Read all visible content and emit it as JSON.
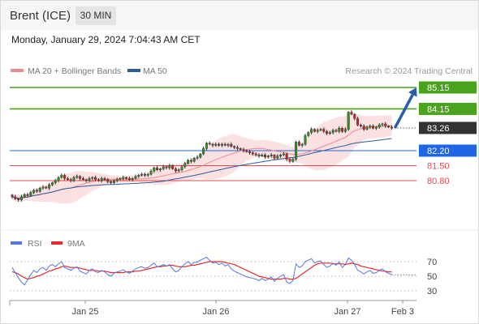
{
  "header": {
    "instrument": "Brent (ICE)",
    "timeframe": "30 MIN",
    "timestamp": "Monday, January 29, 2024 7:04:43 AM CET"
  },
  "legend": {
    "items": [
      {
        "label": "MA 20 + Bollinger Bands",
        "color": "#f08a8a"
      },
      {
        "label": "MA 50",
        "color": "#2d5aa0"
      }
    ],
    "credit": "Research © 2024 Trading Central"
  },
  "chart_data": [
    {
      "type": "candlestick",
      "x_axis": {
        "labels": [
          "Jan 25",
          "Jan 26",
          "Jan 27",
          "Feb 3"
        ]
      },
      "y_range": [
        79.5,
        85.6
      ],
      "grid": false,
      "levels": [
        {
          "value": 85.15,
          "label": "85.15",
          "kind": "resistance",
          "color": "#4aa31c"
        },
        {
          "value": 84.15,
          "label": "84.15",
          "kind": "resistance",
          "color": "#4aa31c"
        },
        {
          "value": 83.26,
          "label": "83.26",
          "kind": "last_price",
          "color": "#333333"
        },
        {
          "value": 82.2,
          "label": "82.20",
          "kind": "pivot",
          "color": "#1f66e5"
        },
        {
          "value": 81.5,
          "label": "81.50",
          "kind": "support",
          "color": "#e8484b"
        },
        {
          "value": 80.8,
          "label": "80.80",
          "kind": "support",
          "color": "#e8484b"
        }
      ],
      "target_arrow": {
        "from": 83.26,
        "to": 85.15
      },
      "closes": [
        80.05,
        79.95,
        79.9,
        80.05,
        80.15,
        80.1,
        80.25,
        80.35,
        80.3,
        80.45,
        80.5,
        80.45,
        80.6,
        80.7,
        80.8,
        80.95,
        81.05,
        80.9,
        80.85,
        80.8,
        80.95,
        81.0,
        80.9,
        80.85,
        80.8,
        80.9,
        80.95,
        80.85,
        80.8,
        80.9,
        80.85,
        80.75,
        80.7,
        80.8,
        80.85,
        80.9,
        80.95,
        80.9,
        80.85,
        80.9,
        81.0,
        81.05,
        81.1,
        81.05,
        81.1,
        81.25,
        81.4,
        81.3,
        81.35,
        81.45,
        81.4,
        81.5,
        81.35,
        81.25,
        81.3,
        81.45,
        81.6,
        81.75,
        81.7,
        81.85,
        81.9,
        82.05,
        82.3,
        82.55,
        82.5,
        82.45,
        82.5,
        82.45,
        82.5,
        82.45,
        82.5,
        82.4,
        82.35,
        82.3,
        82.25,
        82.2,
        82.15,
        82.1,
        82.05,
        82.0,
        81.95,
        82.0,
        81.9,
        81.95,
        82.0,
        81.85,
        81.95,
        82.0,
        82.05,
        81.8,
        81.7,
        81.8,
        82.6,
        82.45,
        82.5,
        82.9,
        83.05,
        83.2,
        83.1,
        83.15,
        83.2,
        83.1,
        83.0,
        83.05,
        83.15,
        83.1,
        83.25,
        83.1,
        83.2,
        84.0,
        83.9,
        83.7,
        83.4,
        83.35,
        83.2,
        83.3,
        83.35,
        83.25,
        83.3,
        83.4,
        83.45,
        83.35,
        83.3,
        83.26
      ]
    },
    {
      "type": "line",
      "title": "RSI",
      "series": [
        {
          "name": "RSI",
          "color": "#5577dd"
        },
        {
          "name": "9MA",
          "color": "#e8282c"
        }
      ],
      "y_ticks": [
        70,
        50,
        30
      ],
      "y_range": [
        20,
        80
      ],
      "rsi": [
        62,
        55,
        48,
        42,
        38,
        45,
        52,
        58,
        55,
        60,
        62,
        58,
        64,
        66,
        63,
        67,
        70,
        62,
        60,
        58,
        61,
        63,
        57,
        55,
        53,
        58,
        60,
        56,
        55,
        58,
        56,
        52,
        50,
        54,
        56,
        57,
        59,
        56,
        54,
        57,
        60,
        62,
        63,
        61,
        62,
        65,
        68,
        63,
        64,
        66,
        64,
        66,
        60,
        56,
        58,
        63,
        67,
        70,
        66,
        69,
        69,
        72,
        74,
        76,
        72,
        68,
        69,
        66,
        68,
        64,
        66,
        60,
        57,
        55,
        53,
        51,
        49,
        48,
        47,
        46,
        44,
        47,
        44,
        46,
        49,
        43,
        47,
        50,
        52,
        42,
        40,
        44,
        67,
        62,
        64,
        70,
        72,
        74,
        68,
        70,
        71,
        66,
        62,
        64,
        68,
        65,
        70,
        62,
        66,
        75,
        72,
        66,
        58,
        56,
        53,
        56,
        58,
        54,
        55,
        58,
        60,
        56,
        54,
        52
      ],
      "ma9": [
        56,
        55,
        53,
        50,
        48,
        46,
        47,
        48,
        50,
        51,
        53,
        55,
        57,
        58,
        60,
        61,
        63,
        64,
        63,
        62,
        62,
        62,
        61,
        60,
        59,
        58,
        58,
        58,
        57,
        57,
        57,
        56,
        55,
        55,
        55,
        55,
        55,
        56,
        56,
        56,
        57,
        57,
        58,
        59,
        60,
        61,
        62,
        63,
        63,
        64,
        64,
        65,
        65,
        64,
        63,
        63,
        63,
        64,
        65,
        65,
        66,
        67,
        68,
        69,
        70,
        70,
        70,
        70,
        70,
        69,
        68,
        67,
        66,
        64,
        62,
        60,
        58,
        56,
        54,
        52,
        50,
        49,
        48,
        47,
        46,
        46,
        46,
        46,
        47,
        47,
        46,
        46,
        47,
        50,
        53,
        56,
        59,
        62,
        65,
        67,
        68,
        68,
        68,
        68,
        67,
        67,
        67,
        67,
        66,
        67,
        68,
        67,
        66,
        64,
        63,
        62,
        61,
        60,
        59,
        58,
        57,
        57,
        56,
        56
      ]
    }
  ]
}
